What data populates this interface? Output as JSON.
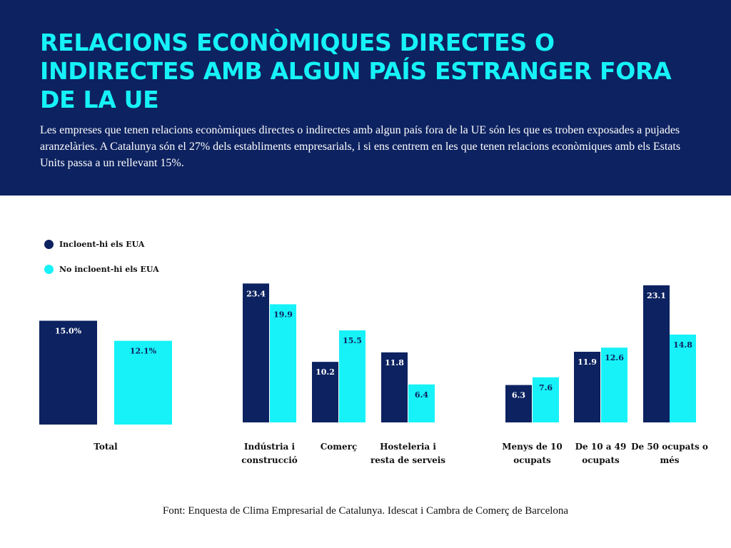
{
  "header": {
    "title": "RELACIONS ECONÒMIQUES DIRECTES O INDIRECTES AMB ALGUN PAÍS ESTRANGER FORA DE LA UE",
    "subtitle": "Les empreses que tenen relacions econòmiques directes o indirectes amb algun país fora de la UE són les que es troben exposades a pujades aranzelàries. A Catalunya són el 27% dels establiments empresarials, i si ens centrem en les que tenen relacions econòmiques amb els Estats Units passa a un rellevant 15%."
  },
  "legend": [
    {
      "label": "Incloent-hi els EUA",
      "color": "#0d2260"
    },
    {
      "label": "No incloent-hi els EUA",
      "color": "#16f2f7"
    }
  ],
  "footer": {
    "source": "Font: Enquesta de Clima Empresarial de Catalunya. Idescat i Cambra de Comerç de Barcelona"
  },
  "chart_data": {
    "type": "bar",
    "categories": [
      "Total",
      "Indústria i construcció",
      "Comerç",
      "Hosteleria i resta de serveis",
      "Menys de 10 ocupats",
      "De 10 a 49 ocupats",
      "De 50 ocupats o més"
    ],
    "category_lines": [
      [
        "Total"
      ],
      [
        "Indústria i",
        "construcció"
      ],
      [
        "Comerç"
      ],
      [
        "Hosteleria i",
        "resta de serveis"
      ],
      [
        "Menys de 10",
        "ocupats"
      ],
      [
        "De 10 a 49",
        "ocupats"
      ],
      [
        "De 50 ocupats o",
        "més"
      ]
    ],
    "series": [
      {
        "name": "Incloent-hi els EUA",
        "color": "#0d2260",
        "values": [
          15.0,
          23.4,
          10.2,
          11.8,
          6.3,
          11.9,
          23.1
        ]
      },
      {
        "name": "No incloent-hi els EUA",
        "color": "#16f2f7",
        "values": [
          12.1,
          19.9,
          15.5,
          6.4,
          7.6,
          12.6,
          14.8
        ]
      }
    ],
    "data_labels": [
      [
        "15.0%",
        "23.4",
        "10.2",
        "11.8",
        "6.3",
        "11.9",
        "23.1"
      ],
      [
        "12.1%",
        "19.9",
        "15.5",
        "6.4",
        "7.6",
        "12.6",
        "14.8"
      ]
    ],
    "groups": [
      {
        "indices": [
          0
        ]
      },
      {
        "indices": [
          1,
          2,
          3
        ]
      },
      {
        "indices": [
          4,
          5,
          6
        ]
      }
    ],
    "y_axis_visible": false,
    "grid": false,
    "legend_position": "top-left"
  }
}
